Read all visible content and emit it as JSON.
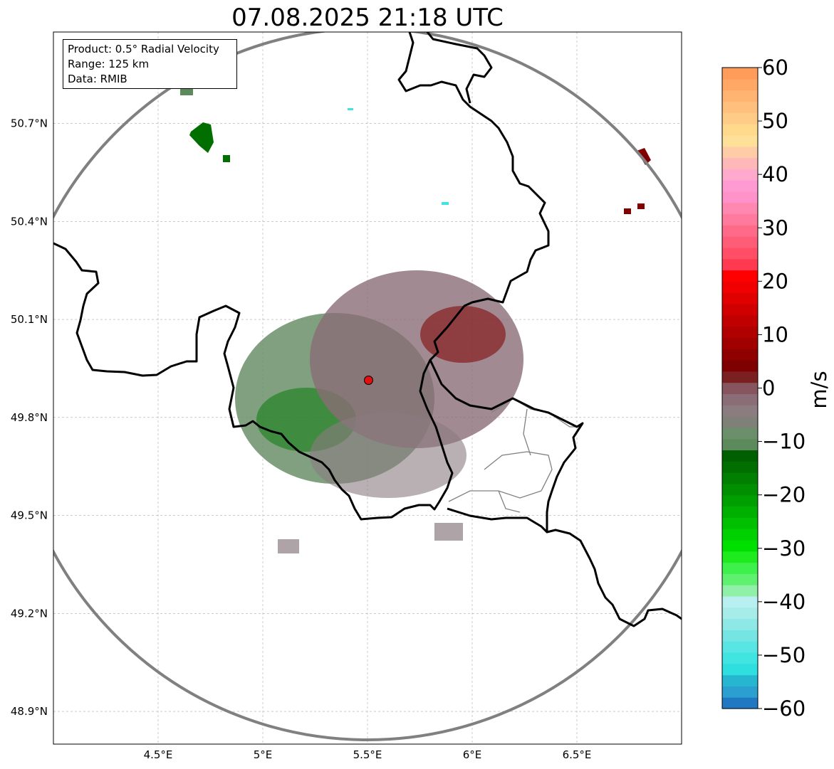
{
  "title": "07.08.2025 21:18 UTC",
  "info_box": {
    "product": "Product: 0.5° Radial Velocity",
    "range": "Range: 125 km",
    "data": "Data: RMIB"
  },
  "map": {
    "lon_range": [
      4.0,
      7.0
    ],
    "lat_range": [
      48.8,
      50.98
    ],
    "x_ticks": [
      {
        "value": 4.5,
        "label": "4.5°E"
      },
      {
        "value": 5.0,
        "label": "5°E"
      },
      {
        "value": 5.5,
        "label": "5.5°E"
      },
      {
        "value": 6.0,
        "label": "6°E"
      },
      {
        "value": 6.5,
        "label": "6.5°E"
      }
    ],
    "y_ticks": [
      {
        "value": 50.7,
        "label": "50.7°N"
      },
      {
        "value": 50.4,
        "label": "50.4°N"
      },
      {
        "value": 50.1,
        "label": "50.1°N"
      },
      {
        "value": 49.8,
        "label": "49.8°N"
      },
      {
        "value": 49.5,
        "label": "49.5°N"
      },
      {
        "value": 49.2,
        "label": "49.2°N"
      },
      {
        "value": 48.9,
        "label": "48.9°N"
      }
    ],
    "grid": true,
    "radar_site": {
      "lon": 5.505,
      "lat": 49.914,
      "color": "#e01010"
    },
    "range_ring_color": "#808080"
  },
  "colorbar": {
    "label": "m/s",
    "min": -60,
    "max": 60,
    "ticks": [
      {
        "value": 60,
        "label": "60"
      },
      {
        "value": 50,
        "label": "50"
      },
      {
        "value": 40,
        "label": "40"
      },
      {
        "value": 30,
        "label": "30"
      },
      {
        "value": 20,
        "label": "20"
      },
      {
        "value": 10,
        "label": "10"
      },
      {
        "value": 0,
        "label": "0"
      },
      {
        "value": -10,
        "label": "−10"
      },
      {
        "value": -20,
        "label": "−20"
      },
      {
        "value": -30,
        "label": "−30"
      },
      {
        "value": -40,
        "label": "−40"
      },
      {
        "value": -50,
        "label": "−50"
      },
      {
        "value": -60,
        "label": "−60"
      }
    ],
    "colors": [
      "#1f78c1",
      "#2a9fd0",
      "#27b6cf",
      "#2fdfe0",
      "#40e4e0",
      "#58e5e3",
      "#74e5e3",
      "#8ee8e6",
      "#a6ece9",
      "#b8eff0",
      "#90f0a8",
      "#60f070",
      "#3ef04a",
      "#1eeb1e",
      "#00e000",
      "#00cf00",
      "#00c000",
      "#00b000",
      "#009f00",
      "#008f00",
      "#007f00",
      "#006f00",
      "#005f00",
      "#5c8a5c",
      "#6a8f6a",
      "#7f8078",
      "#8b7c80",
      "#8a6d76",
      "#87555e",
      "#7a2020",
      "#7f0000",
      "#8f0000",
      "#a00000",
      "#b00000",
      "#c00000",
      "#d00000",
      "#e00000",
      "#f00000",
      "#ff0000",
      "#ff3a50",
      "#ff4e66",
      "#ff5c78",
      "#ff6a88",
      "#ff7a9c",
      "#ff88b0",
      "#ff92c8",
      "#ff9ad2",
      "#ffaacc",
      "#ffb8b8",
      "#ffcca8",
      "#ffe099",
      "#ffd98c",
      "#ffcc88",
      "#ffc07e",
      "#ffb472",
      "#ffa866",
      "#ff9c5a"
    ]
  }
}
